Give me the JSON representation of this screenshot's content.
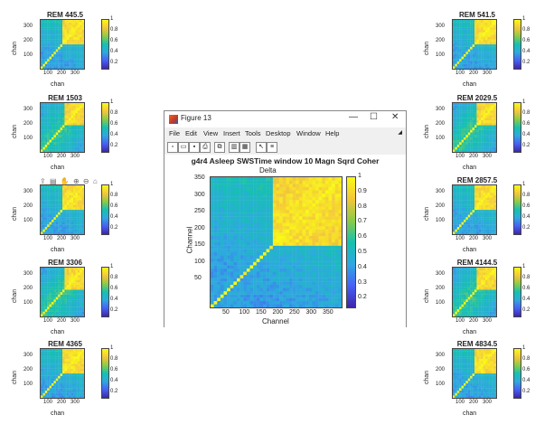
{
  "colormap": [
    "#3e26a8",
    "#4760f7",
    "#2fa8e0",
    "#15c1b0",
    "#8ccb47",
    "#f4c63a",
    "#f9fb15"
  ],
  "small_axes": {
    "y_ticks": [
      "300",
      "200",
      "100"
    ],
    "x_ticks": [
      "100",
      "200",
      "300"
    ],
    "ylabel": "chan",
    "xlabel": "chan",
    "cbar_ticks": [
      "1",
      "0.8",
      "0.6",
      "0.4",
      "0.2"
    ]
  },
  "left_figures": [
    {
      "title": "REM 445.5"
    },
    {
      "title": "REM 1503"
    },
    {
      "title": ""
    },
    {
      "title": "REM 3306"
    },
    {
      "title": "REM 4365"
    }
  ],
  "right_figures": [
    {
      "title": "REM 541.5"
    },
    {
      "title": "REM 2029.5"
    },
    {
      "title": "REM 2857.5"
    },
    {
      "title": "REM 4144.5"
    },
    {
      "title": "REM 4834.5"
    }
  ],
  "axes_toolbox_icons": [
    "export-icon",
    "brush-icon",
    "pan-icon",
    "zoom-in-icon",
    "zoom-out-icon",
    "home-icon"
  ],
  "window": {
    "title": "Figure 13",
    "controls": [
      "—",
      "☐",
      "✕"
    ],
    "menu": [
      "File",
      "Edit",
      "View",
      "Insert",
      "Tools",
      "Desktop",
      "Window",
      "Help"
    ],
    "toolbar_icons": [
      "new-icon",
      "open-icon",
      "save-icon",
      "print-icon",
      "link-icon",
      "dock-icon",
      "layout-icon",
      "pointer-icon",
      "property-icon"
    ],
    "plot": {
      "title": "g4r4 Asleep SWSTime window 10 Magn Sqrd Coher",
      "subtitle": "Delta",
      "ylabel": "Channel",
      "xlabel": "Channel",
      "y_ticks": [
        "350",
        "300",
        "250",
        "200",
        "150",
        "100",
        "50"
      ],
      "x_ticks": [
        "50",
        "100",
        "150",
        "200",
        "250",
        "300",
        "350"
      ],
      "cbar_ticks": [
        "1",
        "0.9",
        "0.8",
        "0.7",
        "0.6",
        "0.5",
        "0.4",
        "0.3",
        "0.2"
      ]
    }
  }
}
